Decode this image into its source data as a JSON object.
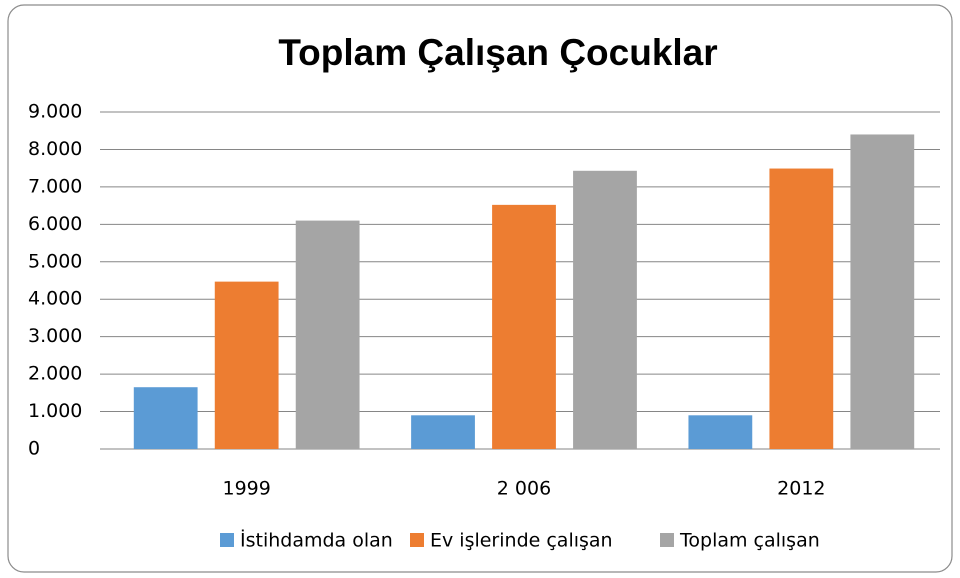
{
  "chart_data": {
    "type": "bar",
    "title": "Toplam Çalışan Çocuklar",
    "categories": [
      "1999",
      "2 006",
      "2012"
    ],
    "series": [
      {
        "name": "İstihdamda olan",
        "color": "#5b9bd5",
        "values": [
          1650,
          900,
          900
        ]
      },
      {
        "name": "Ev işlerinde çalışan",
        "color": "#ed7d31",
        "values": [
          4470,
          6520,
          7490
        ]
      },
      {
        "name": "Toplam çalışan",
        "color": "#a5a5a5",
        "values": [
          6100,
          7430,
          8400
        ]
      }
    ],
    "ylim": [
      0,
      9000
    ],
    "yticks": [
      0,
      {
        "value": 1000,
        "label": "1.000"
      },
      {
        "value": 2000,
        "label": "2.000"
      },
      {
        "value": 3000,
        "label": "3.000"
      },
      {
        "value": 4000,
        "label": "4.000"
      },
      {
        "value": 5000,
        "label": "5.000"
      },
      {
        "value": 6000,
        "label": "6.000"
      },
      {
        "value": 7000,
        "label": "7.000"
      },
      {
        "value": 8000,
        "label": "8.000"
      },
      {
        "value": 9000,
        "label": "9.000"
      }
    ],
    "grid": true,
    "legend": "bottom"
  }
}
